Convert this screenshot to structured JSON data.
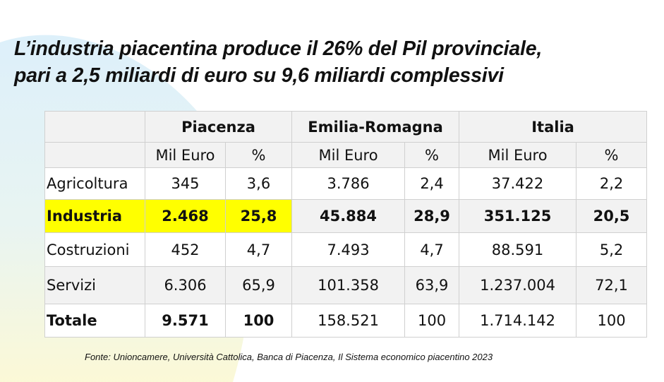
{
  "title": {
    "line1": "L’industria piacentina produce il 26% del Pil provinciale,",
    "line2": "pari a 2,5 miliardi di euro su 9,6 miliardi complessivi"
  },
  "colors": {
    "highlight": "#ffff00",
    "background_arc_top": "#dff0fa",
    "background_arc_bottom": "#fbf8d6"
  },
  "table": {
    "groups": [
      "Piacenza",
      "Emilia-Romagna",
      "Italia"
    ],
    "subheaders": [
      "Mil Euro",
      "%",
      "Mil Euro",
      "%",
      "Mil Euro",
      "%"
    ],
    "rows": [
      {
        "label": "Agricoltura",
        "values": [
          "345",
          "3,6",
          "3.786",
          "2,4",
          "37.422",
          "2,2"
        ]
      },
      {
        "label": "Industria",
        "values": [
          "2.468",
          "25,8",
          "45.884",
          "28,9",
          "351.125",
          "20,5"
        ]
      },
      {
        "label": "Costruzioni",
        "values": [
          "452",
          "4,7",
          "7.493",
          "4,7",
          "88.591",
          "5,2"
        ]
      },
      {
        "label": "Servizi",
        "values": [
          "6.306",
          "65,9",
          "101.358",
          "63,9",
          "1.237.004",
          "72,1"
        ]
      },
      {
        "label": "Totale",
        "values": [
          "9.571",
          "100",
          "158.521",
          "100",
          "1.714.142",
          "100"
        ]
      }
    ]
  },
  "source": "Fonte: Unioncamere, Università Cattolica, Banca di Piacenza, Il Sistema economico piacentino 2023"
}
